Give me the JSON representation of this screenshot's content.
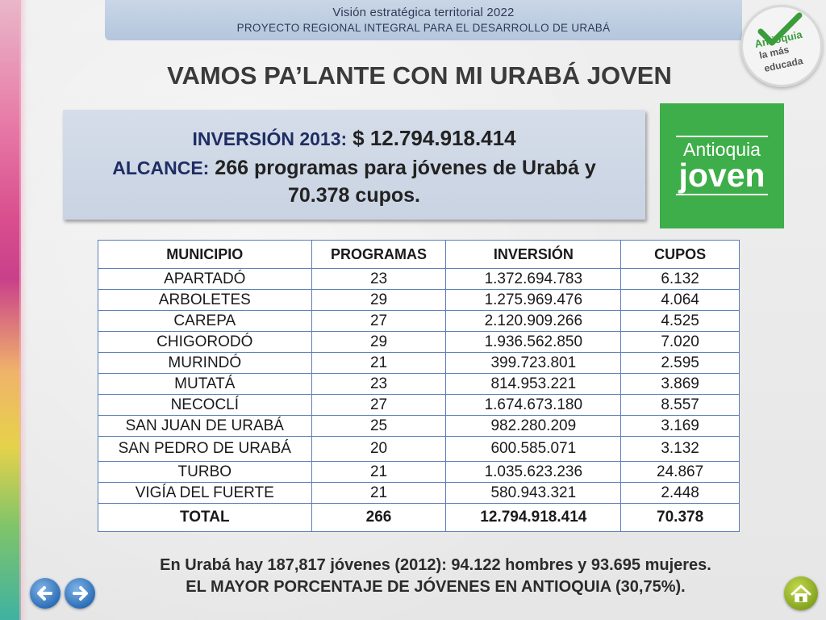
{
  "header": {
    "line1": "Visión estratégica territorial 2022",
    "line2": "PROYECTO REGIONAL INTEGRAL PARA EL DESARROLLO DE URABÁ"
  },
  "badge": {
    "line1": "Antioquia",
    "line2": "la más",
    "line3": "educada",
    "icon": "checkmark-icon",
    "color": "#3a9c3a"
  },
  "title": "VAMOS PA’LANTE CON MI URABÁ JOVEN",
  "info": {
    "inversion_label": "INVERSIÓN 2013:",
    "inversion_value": "$ 12.794.918.414",
    "alcance_label": "ALCANCE:",
    "alcance_value": "266 programas para jóvenes de Urabá y",
    "alcance_value2": "70.378 cupos."
  },
  "logo": {
    "line1": "Antioquia",
    "line2": "joven",
    "color": "#3dae49"
  },
  "table": {
    "headers": [
      "MUNICIPIO",
      "PROGRAMAS",
      "INVERSIÓN",
      "CUPOS"
    ],
    "rows": [
      [
        "APARTADÓ",
        "23",
        "1.372.694.783",
        "6.132"
      ],
      [
        "ARBOLETES",
        "29",
        "1.275.969.476",
        "4.064"
      ],
      [
        "CAREPA",
        "27",
        "2.120.909.266",
        "4.525"
      ],
      [
        "CHIGORODÓ",
        "29",
        "1.936.562.850",
        "7.020"
      ],
      [
        "MURINDÓ",
        "21",
        "399.723.801",
        "2.595"
      ],
      [
        "MUTATÁ",
        "23",
        "814.953.221",
        "3.869"
      ],
      [
        "NECOCLÍ",
        "27",
        "1.674.673.180",
        "8.557"
      ],
      [
        "SAN JUAN DE URABÁ",
        "25",
        "982.280.209",
        "3.169"
      ],
      [
        "SAN PEDRO DE URABÁ",
        "20",
        "600.585.071",
        "3.132"
      ],
      [
        "TURBO",
        "21",
        "1.035.623.236",
        "24.867"
      ],
      [
        "VIGÍA DEL FUERTE",
        "21",
        "580.943.321",
        "2.448"
      ]
    ],
    "total": [
      "TOTAL",
      "266",
      "12.794.918.414",
      "70.378"
    ]
  },
  "footer": {
    "line1": "En Urabá hay 187,817 jóvenes (2012): 94.122 hombres y 93.695  mujeres.",
    "line2": "EL MAYOR PORCENTAJE DE JÓVENES EN ANTIOQUIA (30,75%)."
  },
  "nav": {
    "back_icon": "arrow-left-icon",
    "forward_icon": "arrow-right-icon",
    "home_icon": "home-icon"
  }
}
